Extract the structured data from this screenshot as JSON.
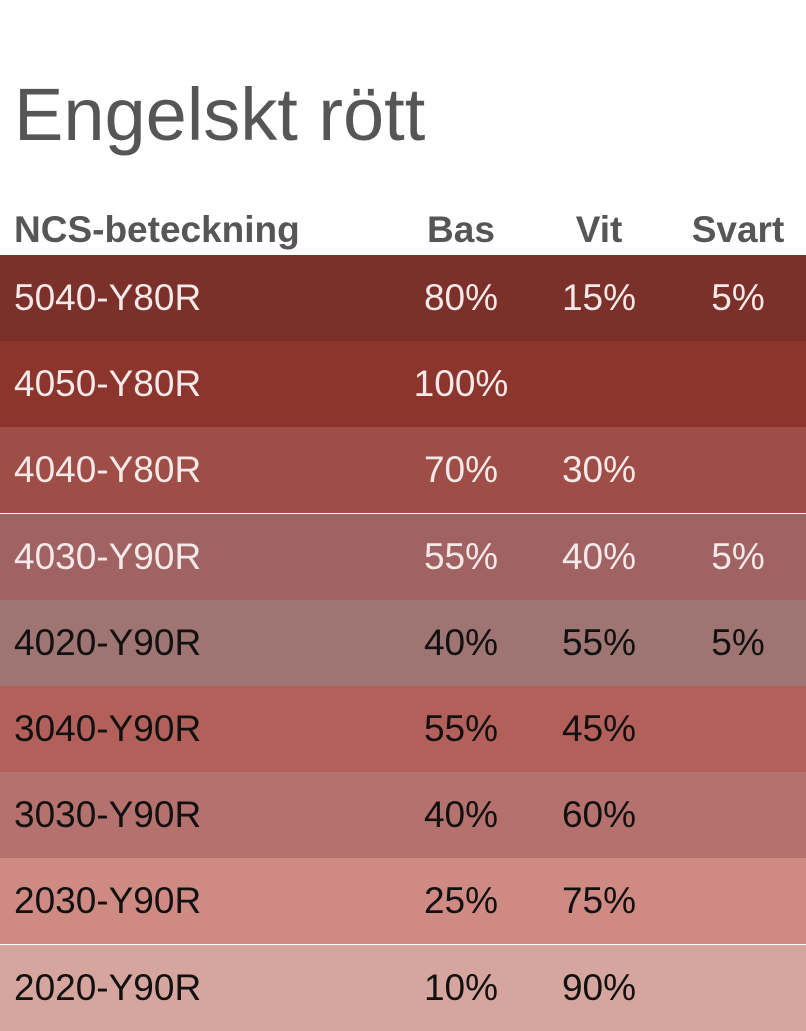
{
  "title": "Engelskt rött",
  "headers": [
    "NCS-beteckning",
    "Bas",
    "Vit",
    "Svart"
  ],
  "rows": [
    {
      "ncs": "5040-Y80R",
      "bas": "80%",
      "vit": "15%",
      "svart": "5%",
      "bg": "#7b302a",
      "fg": "#f4e8e8"
    },
    {
      "ncs": "4050-Y80R",
      "bas": "100%",
      "vit": "",
      "svart": "",
      "bg": "#8b352c",
      "fg": "#f4e8e8"
    },
    {
      "ncs": "4040-Y80R",
      "bas": "70%",
      "vit": "30%",
      "svart": "",
      "bg": "#9e4e47",
      "fg": "#f4e8e8"
    },
    {
      "ncs": "4030-Y90R",
      "bas": "55%",
      "vit": "40%",
      "svart": "5%",
      "bg": "#a06262",
      "fg": "#f4e8e8"
    },
    {
      "ncs": "4020-Y90R",
      "bas": "40%",
      "vit": "55%",
      "svart": "5%",
      "bg": "#9e7572",
      "fg": "#111111"
    },
    {
      "ncs": "3040-Y90R",
      "bas": "55%",
      "vit": "45%",
      "svart": "",
      "bg": "#b4605a",
      "fg": "#111111"
    },
    {
      "ncs": "3030-Y90R",
      "bas": "40%",
      "vit": "60%",
      "svart": "",
      "bg": "#b4716d",
      "fg": "#111111"
    },
    {
      "ncs": "2030-Y90R",
      "bas": "25%",
      "vit": "75%",
      "svart": "",
      "bg": "#d08a84",
      "fg": "#111111"
    },
    {
      "ncs": "2020-Y90R",
      "bas": "10%",
      "vit": "90%",
      "svart": "",
      "bg": "#d6a59d",
      "fg": "#111111"
    }
  ]
}
